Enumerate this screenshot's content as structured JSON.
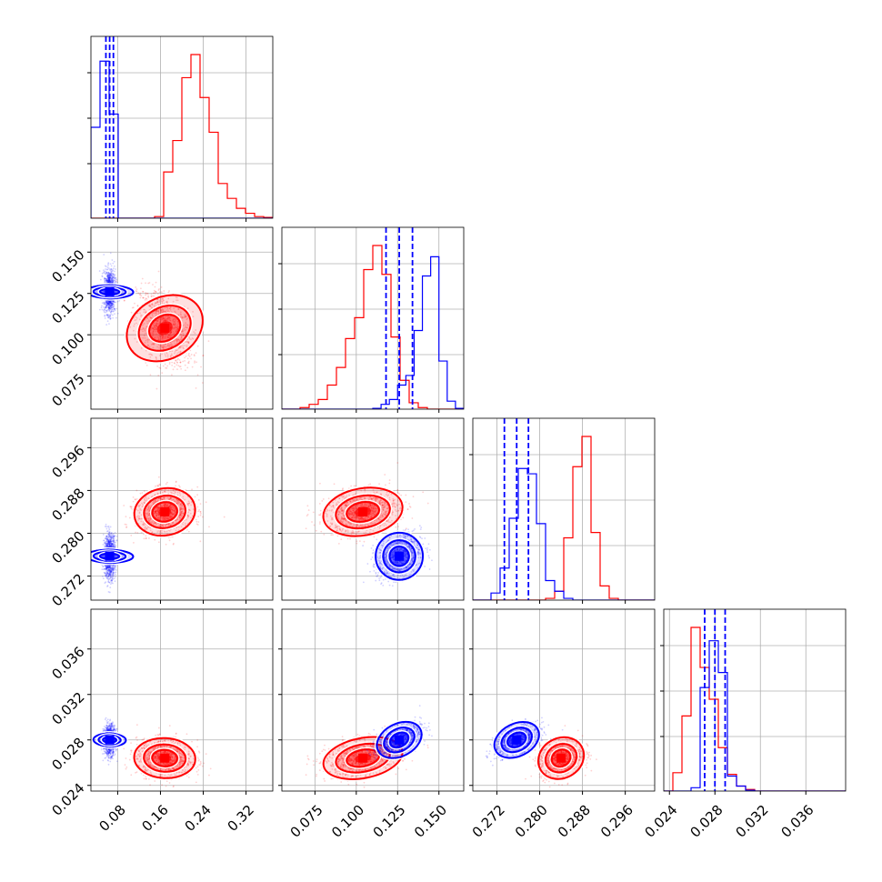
{
  "chart_data": {
    "type": "corner",
    "title": "",
    "series": [
      {
        "color": "#ff0000",
        "mean": [
          0.168,
          0.104,
          0.284,
          0.0264
        ],
        "std": [
          0.026,
          0.011,
          0.002,
          0.0008
        ],
        "corr": [
          [
            1,
            -0.45,
            0.1,
            -0.05
          ],
          [
            -0.45,
            1,
            0.2,
            0.3
          ],
          [
            0.1,
            0.2,
            1,
            0.25
          ],
          [
            -0.05,
            0.3,
            0.25,
            1
          ]
        ]
      },
      {
        "color": "#0000ff",
        "mean": [
          0.065,
          0.126,
          0.2757,
          0.028
        ],
        "std": [
          0.0055,
          0.0065,
          0.002,
          0.00065
        ],
        "corr": [
          [
            1,
            0.05,
            0.05,
            0.05
          ],
          [
            0.05,
            1,
            0.3,
            0.55
          ],
          [
            0.05,
            0.3,
            1,
            0.5
          ],
          [
            0.05,
            0.55,
            0.5,
            1
          ]
        ]
      }
    ],
    "quantile_lines": {
      "color": "#0000ff",
      "values": [
        [
          0.058,
          0.065,
          0.072
        ],
        [
          0.118,
          0.126,
          0.134
        ],
        [
          0.2734,
          0.2757,
          0.2779
        ],
        [
          0.0271,
          0.028,
          0.0289
        ]
      ]
    },
    "histograms": {
      "red": [
        [
          0,
          0,
          0,
          0,
          0,
          0,
          0,
          0.1,
          2.8,
          4.7,
          8.5,
          9.9,
          7.3,
          5.2,
          2.1,
          1.2,
          0.6,
          0.3,
          0.1,
          0.05
        ],
        [
          0,
          0,
          0.1,
          0.3,
          0.6,
          1.5,
          2.6,
          4.4,
          5.7,
          8.7,
          10.2,
          8.4,
          4.5,
          1.8,
          0.4,
          0.1,
          0,
          0,
          0,
          0
        ],
        [
          0,
          0,
          0,
          0,
          0,
          0,
          0,
          0,
          0.1,
          0.5,
          3.5,
          7.5,
          9.2,
          3.8,
          0.8,
          0.1,
          0,
          0,
          0,
          0
        ],
        [
          0,
          1.1,
          4.5,
          9.8,
          7.4,
          5.5,
          2.6,
          1.0,
          0.3,
          0.1,
          0,
          0,
          0,
          0,
          0,
          0,
          0,
          0,
          0,
          0
        ]
      ],
      "blue": [
        [
          5.5,
          9.5,
          6.3,
          0,
          0,
          0,
          0,
          0,
          0,
          0,
          0,
          0,
          0,
          0,
          0,
          0,
          0,
          0,
          0,
          0
        ],
        [
          0,
          0,
          0,
          0,
          0,
          0,
          0,
          0,
          0,
          0,
          0,
          0.05,
          0.3,
          0.6,
          1.5,
          2.1,
          4.9,
          8.3,
          9.5,
          3.0,
          0.5,
          0.05
        ],
        [
          0,
          0,
          0.4,
          1.8,
          4.6,
          7.4,
          7.1,
          4.3,
          1.1,
          0.5,
          0.1,
          0,
          0,
          0,
          0,
          0,
          0,
          0,
          0,
          0
        ],
        [
          0,
          0,
          0,
          0.2,
          6.2,
          9.0,
          7.1,
          0.9,
          0.3,
          0.05,
          0,
          0,
          0,
          0,
          0,
          0,
          0,
          0,
          0,
          0
        ]
      ]
    },
    "axes": [
      {
        "lim": [
          0.03,
          0.37
        ],
        "ticks": [
          0.08,
          0.16,
          0.24,
          0.32
        ],
        "tick_labels": [
          "0.08",
          "0.16",
          "0.24",
          "0.32"
        ]
      },
      {
        "lim": [
          0.055,
          0.165
        ],
        "ticks": [
          0.075,
          0.1,
          0.125,
          0.15
        ],
        "tick_labels": [
          "0.075",
          "0.100",
          "0.125",
          "0.150"
        ]
      },
      {
        "lim": [
          0.2675,
          0.3015
        ],
        "ticks": [
          0.272,
          0.28,
          0.288,
          0.296
        ],
        "tick_labels": [
          "0.272",
          "0.280",
          "0.288",
          "0.296"
        ]
      },
      {
        "lim": [
          0.0235,
          0.0395
        ],
        "ticks": [
          0.024,
          0.028,
          0.032,
          0.036
        ],
        "tick_labels": [
          "0.024",
          "0.028",
          "0.032",
          "0.036"
        ]
      }
    ],
    "grid": true
  }
}
